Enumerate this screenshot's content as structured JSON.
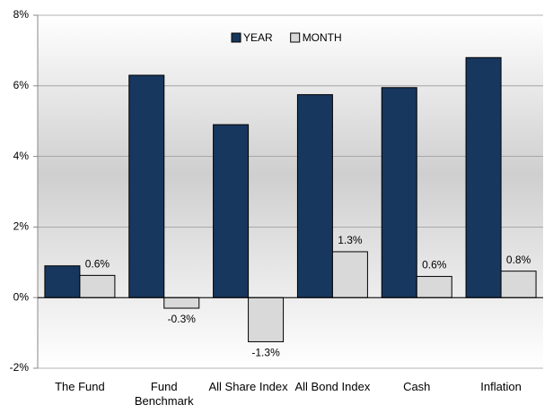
{
  "chart_data": {
    "type": "bar",
    "categories": [
      "The Fund",
      "Fund Benchmark",
      "All Share Index",
      "All Bond Index",
      "Cash",
      "Inflation"
    ],
    "series": [
      {
        "name": "YEAR",
        "color": "#17375e",
        "values": [
          0.9,
          6.3,
          4.9,
          5.75,
          5.95,
          6.8
        ]
      },
      {
        "name": "MONTH",
        "color": "#d9d9d9",
        "values": [
          0.63,
          -0.3,
          -1.25,
          1.3,
          0.6,
          0.75
        ],
        "value_labels": [
          "0.6%",
          "-0.3%",
          "-1.3%",
          "1.3%",
          "0.6%",
          "0.8%"
        ]
      }
    ],
    "ylim": [
      -2,
      8
    ],
    "yticks": [
      {
        "value": -2,
        "label": "-2%"
      },
      {
        "value": 0,
        "label": "0%"
      },
      {
        "value": 2,
        "label": "2%"
      },
      {
        "value": 4,
        "label": "4%"
      },
      {
        "value": 6,
        "label": "6%"
      },
      {
        "value": 8,
        "label": "8%"
      }
    ],
    "grid": true,
    "legend": "top"
  }
}
